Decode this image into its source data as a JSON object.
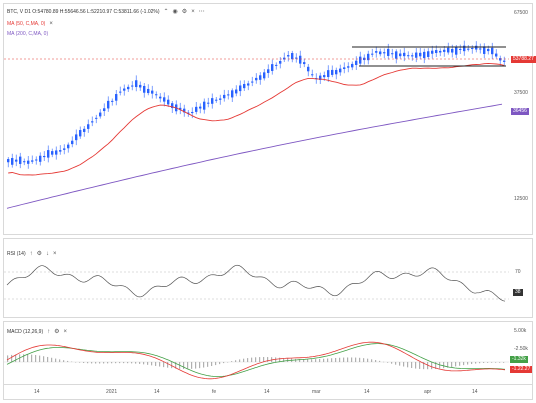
{
  "price": {
    "symbol_line": "BTC, V  D1  O:54780.89  H:55646.56  L:52210.97  C:53811.66  (-1.02%)",
    "toolbar_icons": [
      "arrow-up-icon",
      "eye-icon",
      "gear-icon",
      "close-icon",
      "more-icon"
    ],
    "ma50_label": "MA (50, C,MA, 0)",
    "ma200_label": "MA (200, C,MA, 0)",
    "close_icon": "×",
    "axis_labels": [
      "67500",
      "37500",
      "12500"
    ],
    "current_price_tag": "53788.27",
    "ma_tag": "36456",
    "colors": {
      "candle": "#2962ff",
      "ma50": "#e53935",
      "ma200": "#7e57c2",
      "current": "#e53935",
      "range_line": "#222222"
    }
  },
  "rsi": {
    "label": "RSI (14)",
    "icons": [
      "↑",
      "⚙",
      "↓",
      "×"
    ],
    "level_label": "70",
    "value_tag": "38",
    "colors": {
      "line": "#555555",
      "level": "#bbbbbb"
    }
  },
  "macd": {
    "label": "MACD (12,26,9)",
    "icons": [
      "↑",
      "⚙",
      "×"
    ],
    "axis_labels": [
      "5.00k",
      "-2.50k"
    ],
    "tag_green": "-1.32k",
    "tag_red": "-1.22.27",
    "colors": {
      "macd": "#e53935",
      "signal": "#43a047",
      "hist": "#b0b0b0"
    }
  },
  "time_axis": [
    "14",
    "2021",
    "14",
    "fe",
    "14",
    "mar",
    "14",
    "apr",
    "14"
  ]
}
